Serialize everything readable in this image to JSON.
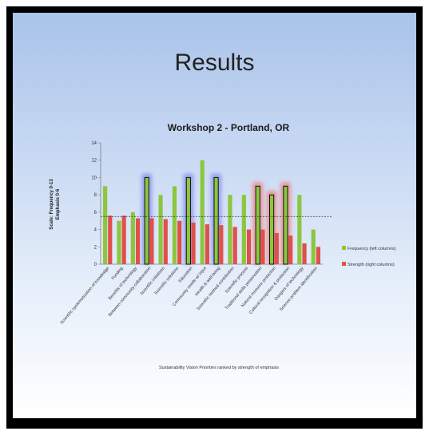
{
  "slide": {
    "title": "Results"
  },
  "colors": {
    "frequency": "#8cc63f",
    "strength": "#e0504a",
    "highlight_blue": "#8a8cf0",
    "highlight_red": "#f08080"
  },
  "chart_data": {
    "type": "bar",
    "title": "Workshop 2 - Portland, OR",
    "xlabel": "Sustainability Vision Priorities ranked by strength of emphasis",
    "ylabel_lines": [
      "Scale: Frequency 0-13",
      "Emphasis 0-6"
    ],
    "ylim": [
      0,
      14
    ],
    "yticks": [
      0,
      2,
      4,
      6,
      8,
      10,
      12,
      14
    ],
    "reference_line": 5.5,
    "categories": [
      "Scientific systematization of knowledge",
      "Funding",
      "Benefits of technology",
      "Between community collaboration",
      "Scientific initiatives",
      "Scientific solutions",
      "Education",
      "Community needs w/ input",
      "Health & well-being",
      "Scientific method contribution",
      "Scientific process",
      "Traditional skills preservation",
      "Natural resource protection",
      "Cultural recognition & protection",
      "Dangers of technology",
      "Science problem identification"
    ],
    "series": [
      {
        "name": "Frequency (left columns)",
        "values": [
          9,
          5,
          6,
          10,
          8,
          9,
          10,
          12,
          10,
          8,
          8,
          9,
          8,
          9,
          8,
          4
        ]
      },
      {
        "name": "Strength (right columns)",
        "values": [
          5.6,
          5.6,
          5.3,
          5.3,
          5.2,
          5.0,
          4.8,
          4.6,
          4.5,
          4.3,
          4.0,
          4.0,
          3.6,
          3.3,
          2.4,
          2.0
        ]
      }
    ],
    "highlighted": [
      {
        "index": 3,
        "tone": "blue"
      },
      {
        "index": 6,
        "tone": "blue"
      },
      {
        "index": 8,
        "tone": "blue"
      },
      {
        "index": 11,
        "tone": "red"
      },
      {
        "index": 12,
        "tone": "red"
      },
      {
        "index": 13,
        "tone": "red"
      }
    ],
    "legend_position": "right"
  }
}
